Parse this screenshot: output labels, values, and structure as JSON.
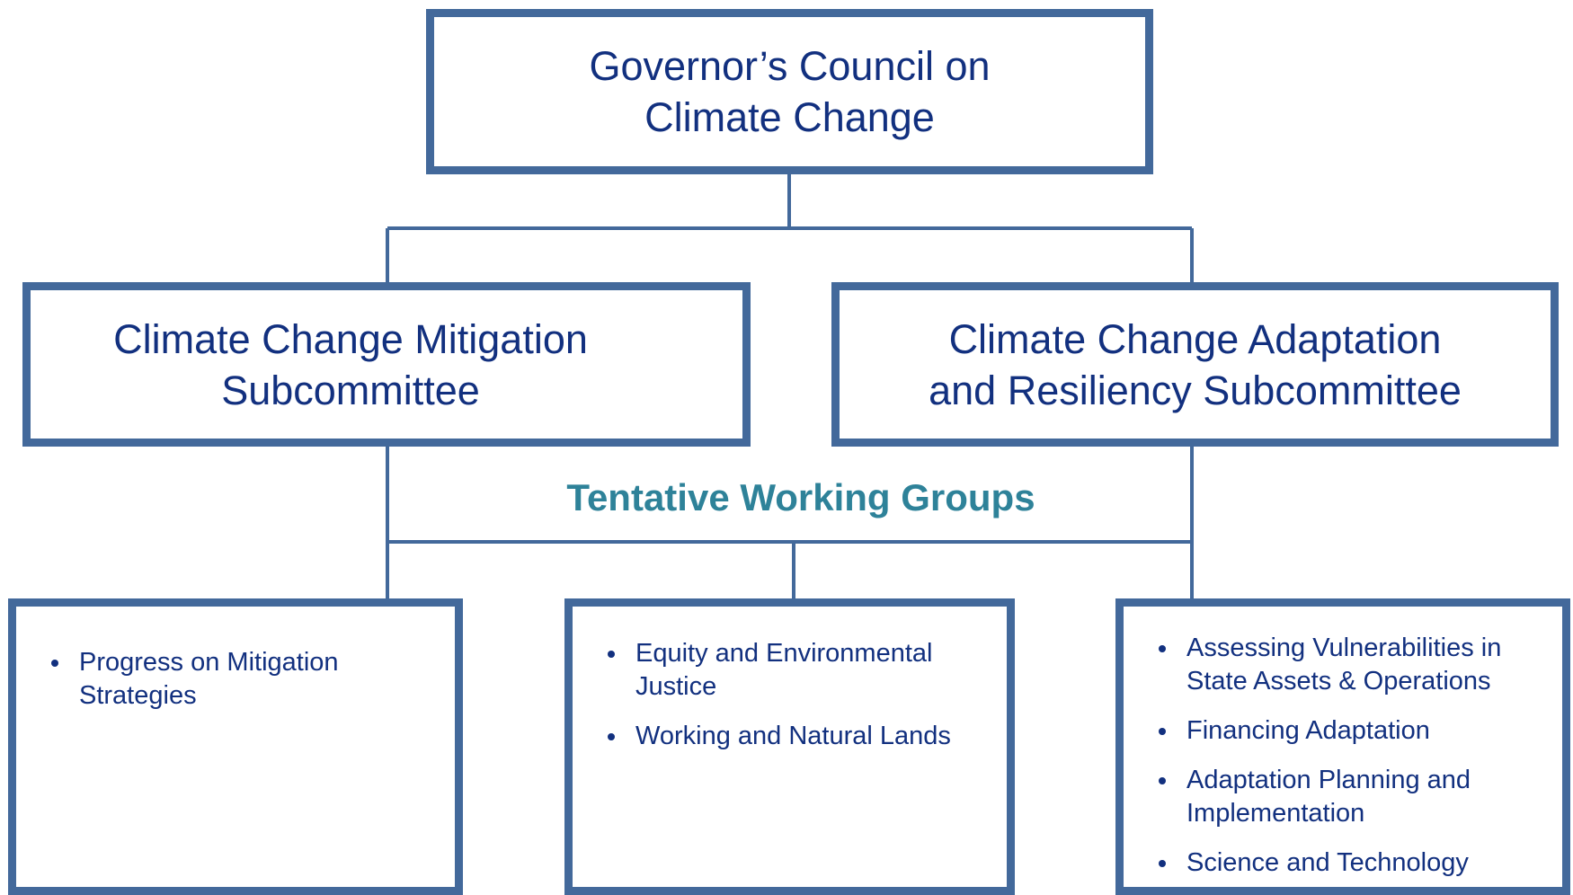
{
  "nodes": [
    {
      "title": [
        "Governor’s Council on",
        "Climate Change"
      ]
    },
    {
      "title": [
        "Climate Change Mitigation",
        "Subcommittee"
      ]
    },
    {
      "title": [
        "Climate Change Adaptation",
        "and Resiliency Subcommittee"
      ]
    }
  ],
  "working_groups": {
    "title": "Tentative Working Groups",
    "groups": [
      {
        "items": [
          "Progress on Mitigation Strategies"
        ]
      },
      {
        "items": [
          "Equity and Environmental Justice",
          "Working and Natural Lands"
        ]
      },
      {
        "items": [
          "Assessing Vulnerabilities in State Assets & Operations",
          "Financing Adaptation",
          "Adaptation Planning and Implementation",
          "Science and Technology"
        ]
      }
    ]
  }
}
